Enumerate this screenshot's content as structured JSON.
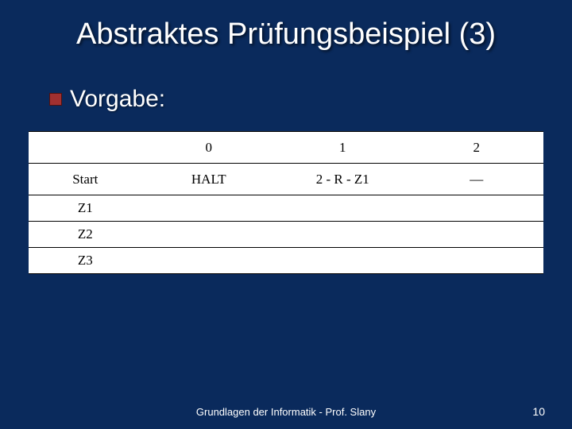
{
  "slide": {
    "background_color": "#0a2a5c",
    "title": "Abstraktes Prüfungsbeispiel (3)",
    "title_color": "#ffffff",
    "title_fontsize": 38,
    "bullet": {
      "marker_color": "#a03030",
      "text": "Vorgabe:",
      "text_color": "#ffffff",
      "text_fontsize": 30
    },
    "table": {
      "background_color": "#ffffff",
      "border_color": "#000000",
      "font_family": "Times New Roman",
      "fontsize": 17,
      "columns": [
        "",
        "0",
        "1",
        "2"
      ],
      "column_widths_pct": [
        22,
        26,
        26,
        26
      ],
      "rows": [
        [
          "Start",
          "HALT",
          "2 - R - Z1",
          "—"
        ],
        [
          "Z1",
          "",
          "",
          ""
        ],
        [
          "Z2",
          "",
          "",
          ""
        ],
        [
          "Z3",
          "",
          "",
          ""
        ]
      ]
    },
    "footer": "Grundlagen der Informatik - Prof. Slany",
    "footer_color": "#ffffff",
    "footer_fontsize": 13,
    "page_number": "10"
  }
}
